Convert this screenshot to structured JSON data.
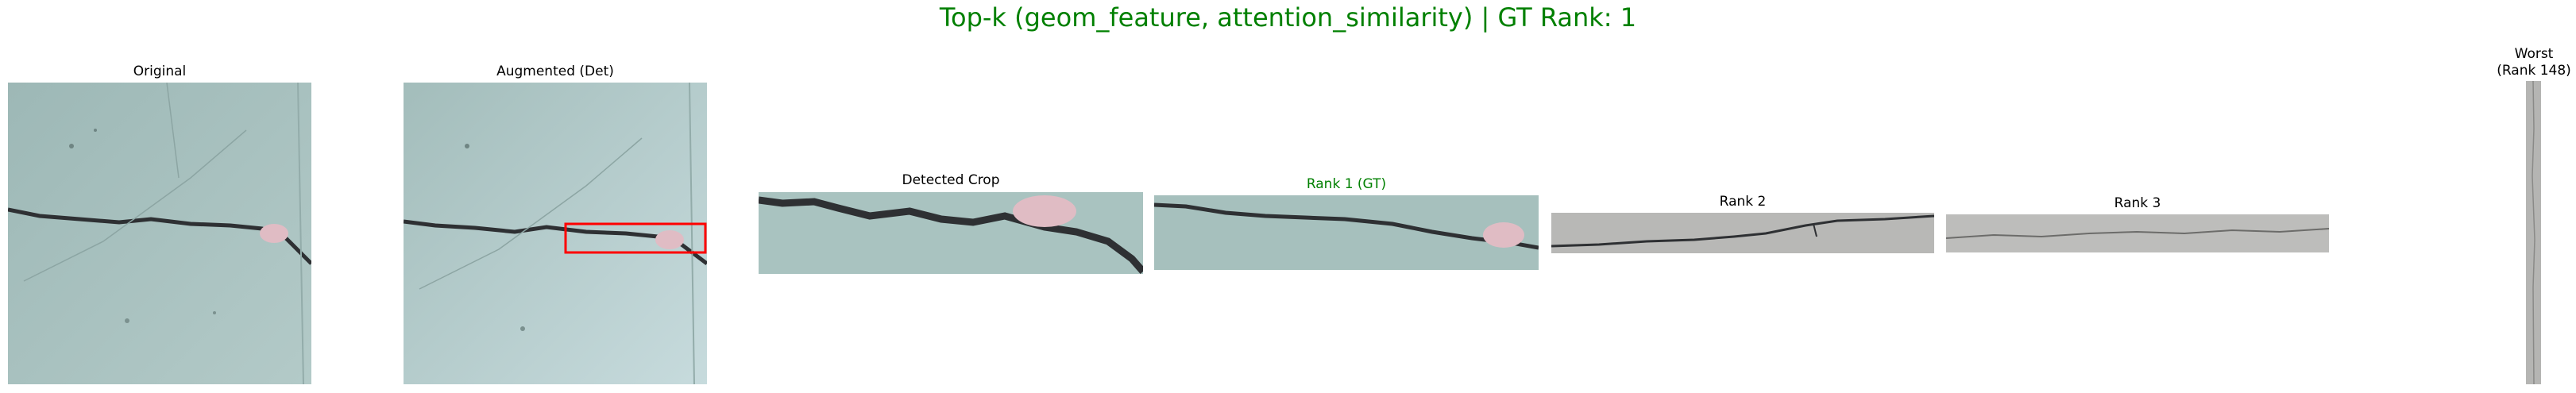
{
  "figure": {
    "title": "Top-k (geom_feature, attention_similarity) | GT Rank: 1",
    "title_color": "#008000"
  },
  "panels": {
    "original": {
      "caption": "Original"
    },
    "augmented": {
      "caption": "Augmented (Det)"
    },
    "detected_crop": {
      "caption": "Detected Crop"
    },
    "rank1": {
      "caption": "Rank 1 (GT)",
      "caption_color": "#008000"
    },
    "rank2": {
      "caption": "Rank 2"
    },
    "rank3": {
      "caption": "Rank 3"
    },
    "worst": {
      "caption_line1": "Worst",
      "caption_line2": "(Rank 148)"
    }
  },
  "colors": {
    "concrete_teal": "#a8c2bf",
    "concrete_grey": "#b9b9b7",
    "crack": "#2e3033",
    "detection_box": "#ff0000",
    "stain_pink": "#e0bcc4"
  }
}
